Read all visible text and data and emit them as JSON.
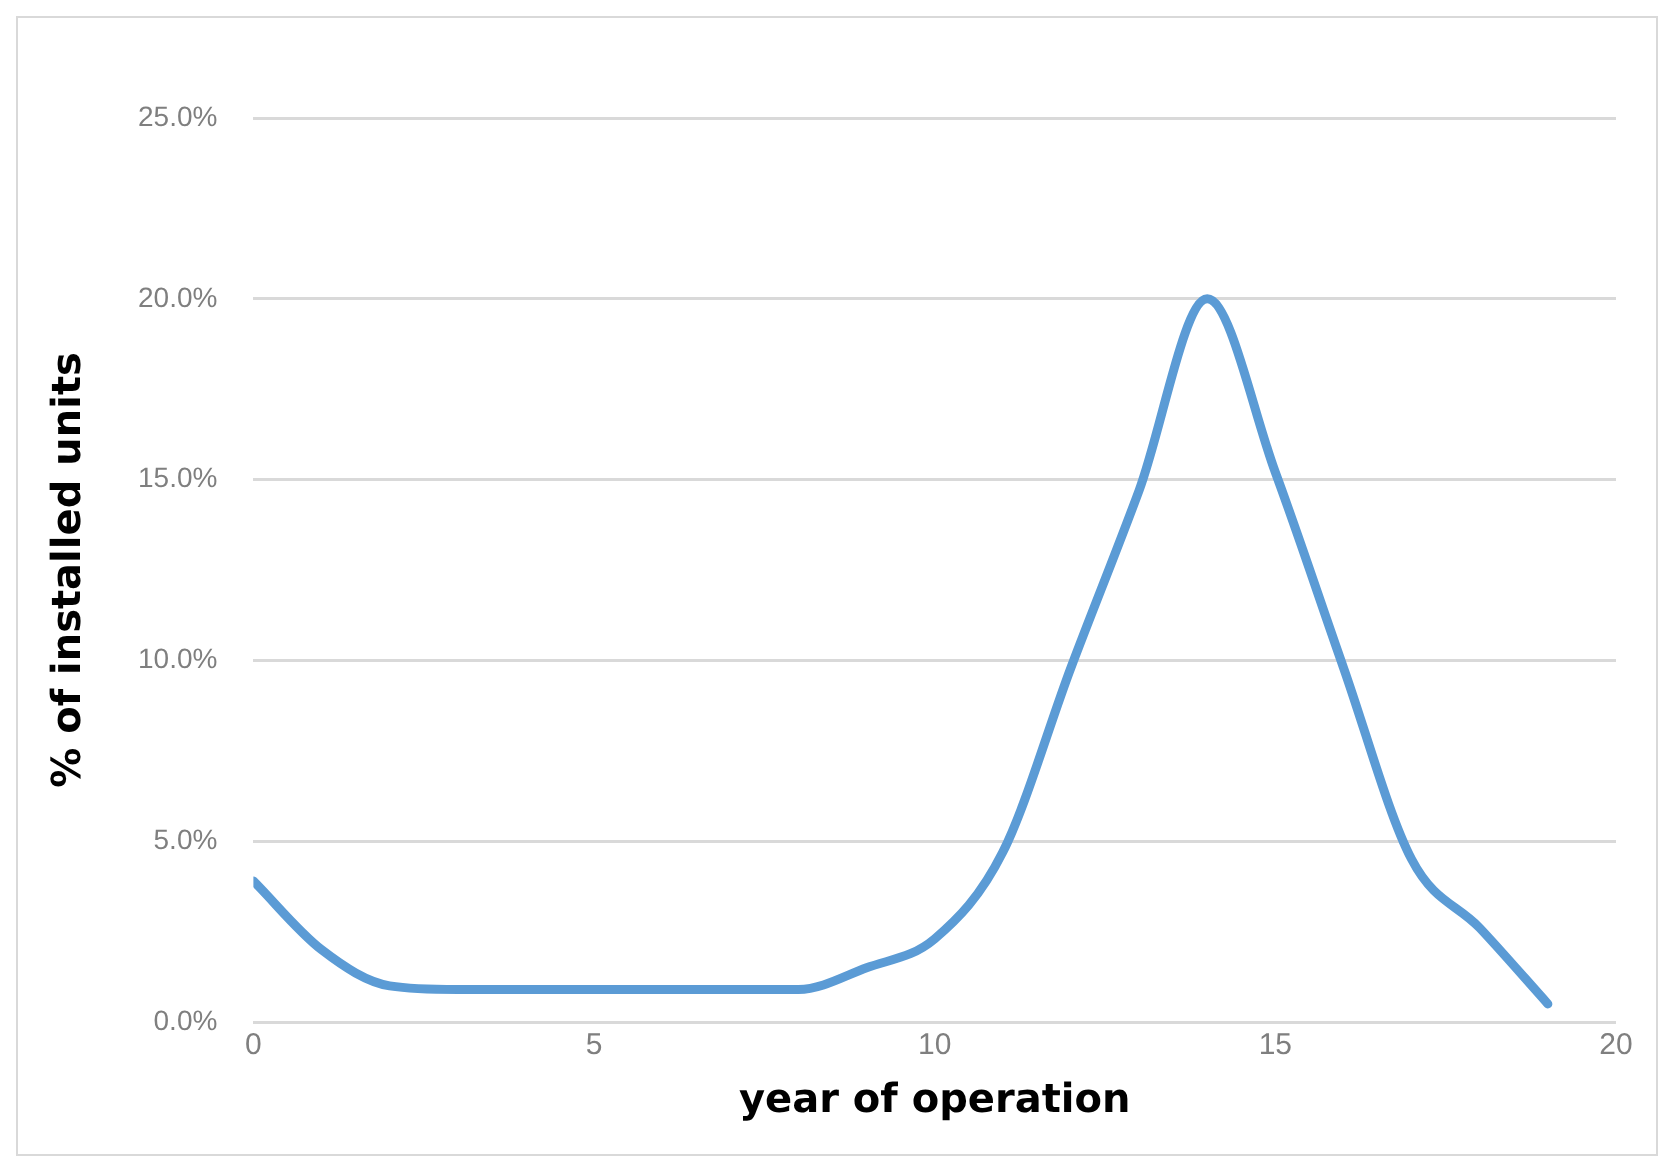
{
  "chart_data": {
    "type": "line",
    "xlabel": "year of operation",
    "ylabel": "% of installed units",
    "x": [
      0,
      1,
      2,
      3,
      4,
      5,
      6,
      7,
      8,
      9,
      10,
      11,
      12,
      13,
      14,
      15,
      16,
      17,
      18,
      19
    ],
    "series": [
      {
        "color": "#5b9bd5",
        "values": [
          3.9,
          2.0,
          1.0,
          0.9,
          0.9,
          0.9,
          0.9,
          0.9,
          0.9,
          1.5,
          2.3,
          4.7,
          9.8,
          14.7,
          20.0,
          15.2,
          9.8,
          4.5,
          2.6,
          0.5
        ]
      }
    ],
    "xlim": [
      0,
      20
    ],
    "xticks": [
      0,
      5,
      10,
      15,
      20
    ],
    "ylim": [
      0,
      25
    ],
    "yticks": [
      {
        "value": 0,
        "label": "0.0%"
      },
      {
        "value": 5,
        "label": "5.0%"
      },
      {
        "value": 10,
        "label": "10.0%"
      },
      {
        "value": 15,
        "label": "15.0%"
      },
      {
        "value": 20,
        "label": "20.0%"
      },
      {
        "value": 25,
        "label": "25.0%"
      }
    ],
    "grid": "y",
    "legend": false,
    "marker": "none",
    "line_style": "solid"
  }
}
